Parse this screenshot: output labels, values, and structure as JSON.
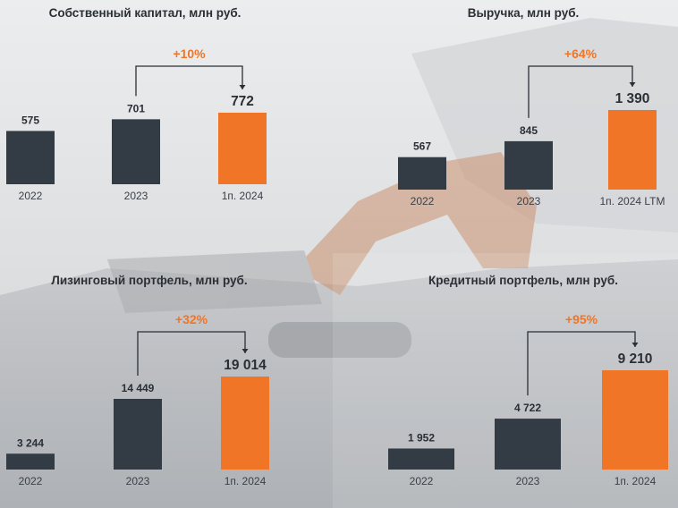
{
  "colors": {
    "dark_bar": "#333b45",
    "accent_bar": "#f07527",
    "accent_text": "#f07527",
    "value_text": "#2a2f36",
    "axis_text": "#3b4048",
    "bracket": "#2a2f36"
  },
  "chart_data": [
    {
      "type": "bar",
      "title": "Собственный капитал, млн руб.",
      "categories": [
        "2022",
        "2023",
        "1п. 2024"
      ],
      "values": [
        575,
        701,
        772
      ],
      "value_labels": [
        "575",
        "701",
        "772"
      ],
      "highlight_index": 2,
      "growth_label": "+10%",
      "growth_from_index": 1,
      "growth_to_index": 2
    },
    {
      "type": "bar",
      "title": "Выручка, млн руб.",
      "categories": [
        "2022",
        "2023",
        "1п. 2024 LTM"
      ],
      "values": [
        567,
        845,
        1390
      ],
      "value_labels": [
        "567",
        "845",
        "1 390"
      ],
      "highlight_index": 2,
      "growth_label": "+64%",
      "growth_from_index": 1,
      "growth_to_index": 2
    },
    {
      "type": "bar",
      "title": "Лизинговый портфель, млн руб.",
      "categories": [
        "2022",
        "2023",
        "1п. 2024"
      ],
      "values": [
        3244,
        14449,
        19014
      ],
      "value_labels": [
        "3 244",
        "14 449",
        "19 014"
      ],
      "highlight_index": 2,
      "growth_label": "+32%",
      "growth_from_index": 1,
      "growth_to_index": 2
    },
    {
      "type": "bar",
      "title": "Кредитный портфель, млн руб.",
      "categories": [
        "2022",
        "2023",
        "1п. 2024"
      ],
      "values": [
        1952,
        4722,
        9210
      ],
      "value_labels": [
        "1 952",
        "4 722",
        "9 210"
      ],
      "highlight_index": 2,
      "growth_label": "+95%",
      "growth_from_index": 1,
      "growth_to_index": 2
    }
  ]
}
